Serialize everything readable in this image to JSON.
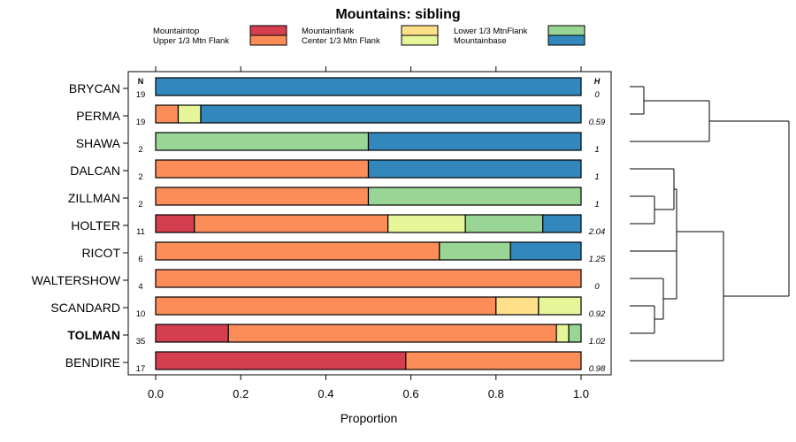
{
  "chart_data": {
    "type": "bar",
    "orientation": "horizontal-stacked",
    "title": "Mountains: sibling",
    "xlabel": "Proportion",
    "xlim": [
      0,
      1
    ],
    "xticks": [
      "0.0",
      "0.2",
      "0.4",
      "0.6",
      "0.8",
      "1.0"
    ],
    "n_header": "N",
    "h_header": "H",
    "legend": [
      {
        "name": "Mountaintop",
        "color": "#D53E4F"
      },
      {
        "name": "Upper 1/3 Mtn Flank",
        "color": "#FC8D59"
      },
      {
        "name": "Mountainflank",
        "color": "#FEE08B"
      },
      {
        "name": "Center 1/3 Mtn Flank",
        "color": "#E6F598"
      },
      {
        "name": "Lower 1/3 MtnFlank",
        "color": "#99D594"
      },
      {
        "name": "Mountainbase",
        "color": "#3288BD"
      }
    ],
    "rows": [
      {
        "name": "BRYCAN",
        "n": "19",
        "h": "0",
        "bold": false,
        "values": [
          0,
          0,
          0,
          0,
          0,
          1.0
        ]
      },
      {
        "name": "PERMA",
        "n": "19",
        "h": "0.59",
        "bold": false,
        "values": [
          0,
          0.053,
          0,
          0.053,
          0,
          0.894
        ]
      },
      {
        "name": "SHAWA",
        "n": "2",
        "h": "1",
        "bold": false,
        "values": [
          0,
          0,
          0,
          0,
          0.5,
          0.5
        ]
      },
      {
        "name": "DALCAN",
        "n": "2",
        "h": "1",
        "bold": false,
        "values": [
          0,
          0.5,
          0,
          0,
          0,
          0.5
        ]
      },
      {
        "name": "ZILLMAN",
        "n": "2",
        "h": "1",
        "bold": false,
        "values": [
          0,
          0.5,
          0,
          0,
          0.5,
          0
        ]
      },
      {
        "name": "HOLTER",
        "n": "11",
        "h": "2.04",
        "bold": false,
        "values": [
          0.091,
          0.455,
          0,
          0.182,
          0.182,
          0.09
        ]
      },
      {
        "name": "RICOT",
        "n": "6",
        "h": "1.25",
        "bold": false,
        "values": [
          0,
          0.667,
          0,
          0,
          0.167,
          0.166
        ]
      },
      {
        "name": "WALTERSHOW",
        "n": "4",
        "h": "0",
        "bold": false,
        "values": [
          0,
          1.0,
          0,
          0,
          0,
          0
        ]
      },
      {
        "name": "SCANDARD",
        "n": "10",
        "h": "0.92",
        "bold": false,
        "values": [
          0,
          0.8,
          0.1,
          0.1,
          0,
          0
        ]
      },
      {
        "name": "TOLMAN",
        "n": "35",
        "h": "1.02",
        "bold": true,
        "values": [
          0.171,
          0.771,
          0,
          0.029,
          0.029,
          0
        ]
      },
      {
        "name": "BENDIRE",
        "n": "17",
        "h": "0.98",
        "bold": false,
        "values": [
          0.588,
          0.412,
          0,
          0,
          0,
          0
        ]
      }
    ]
  }
}
